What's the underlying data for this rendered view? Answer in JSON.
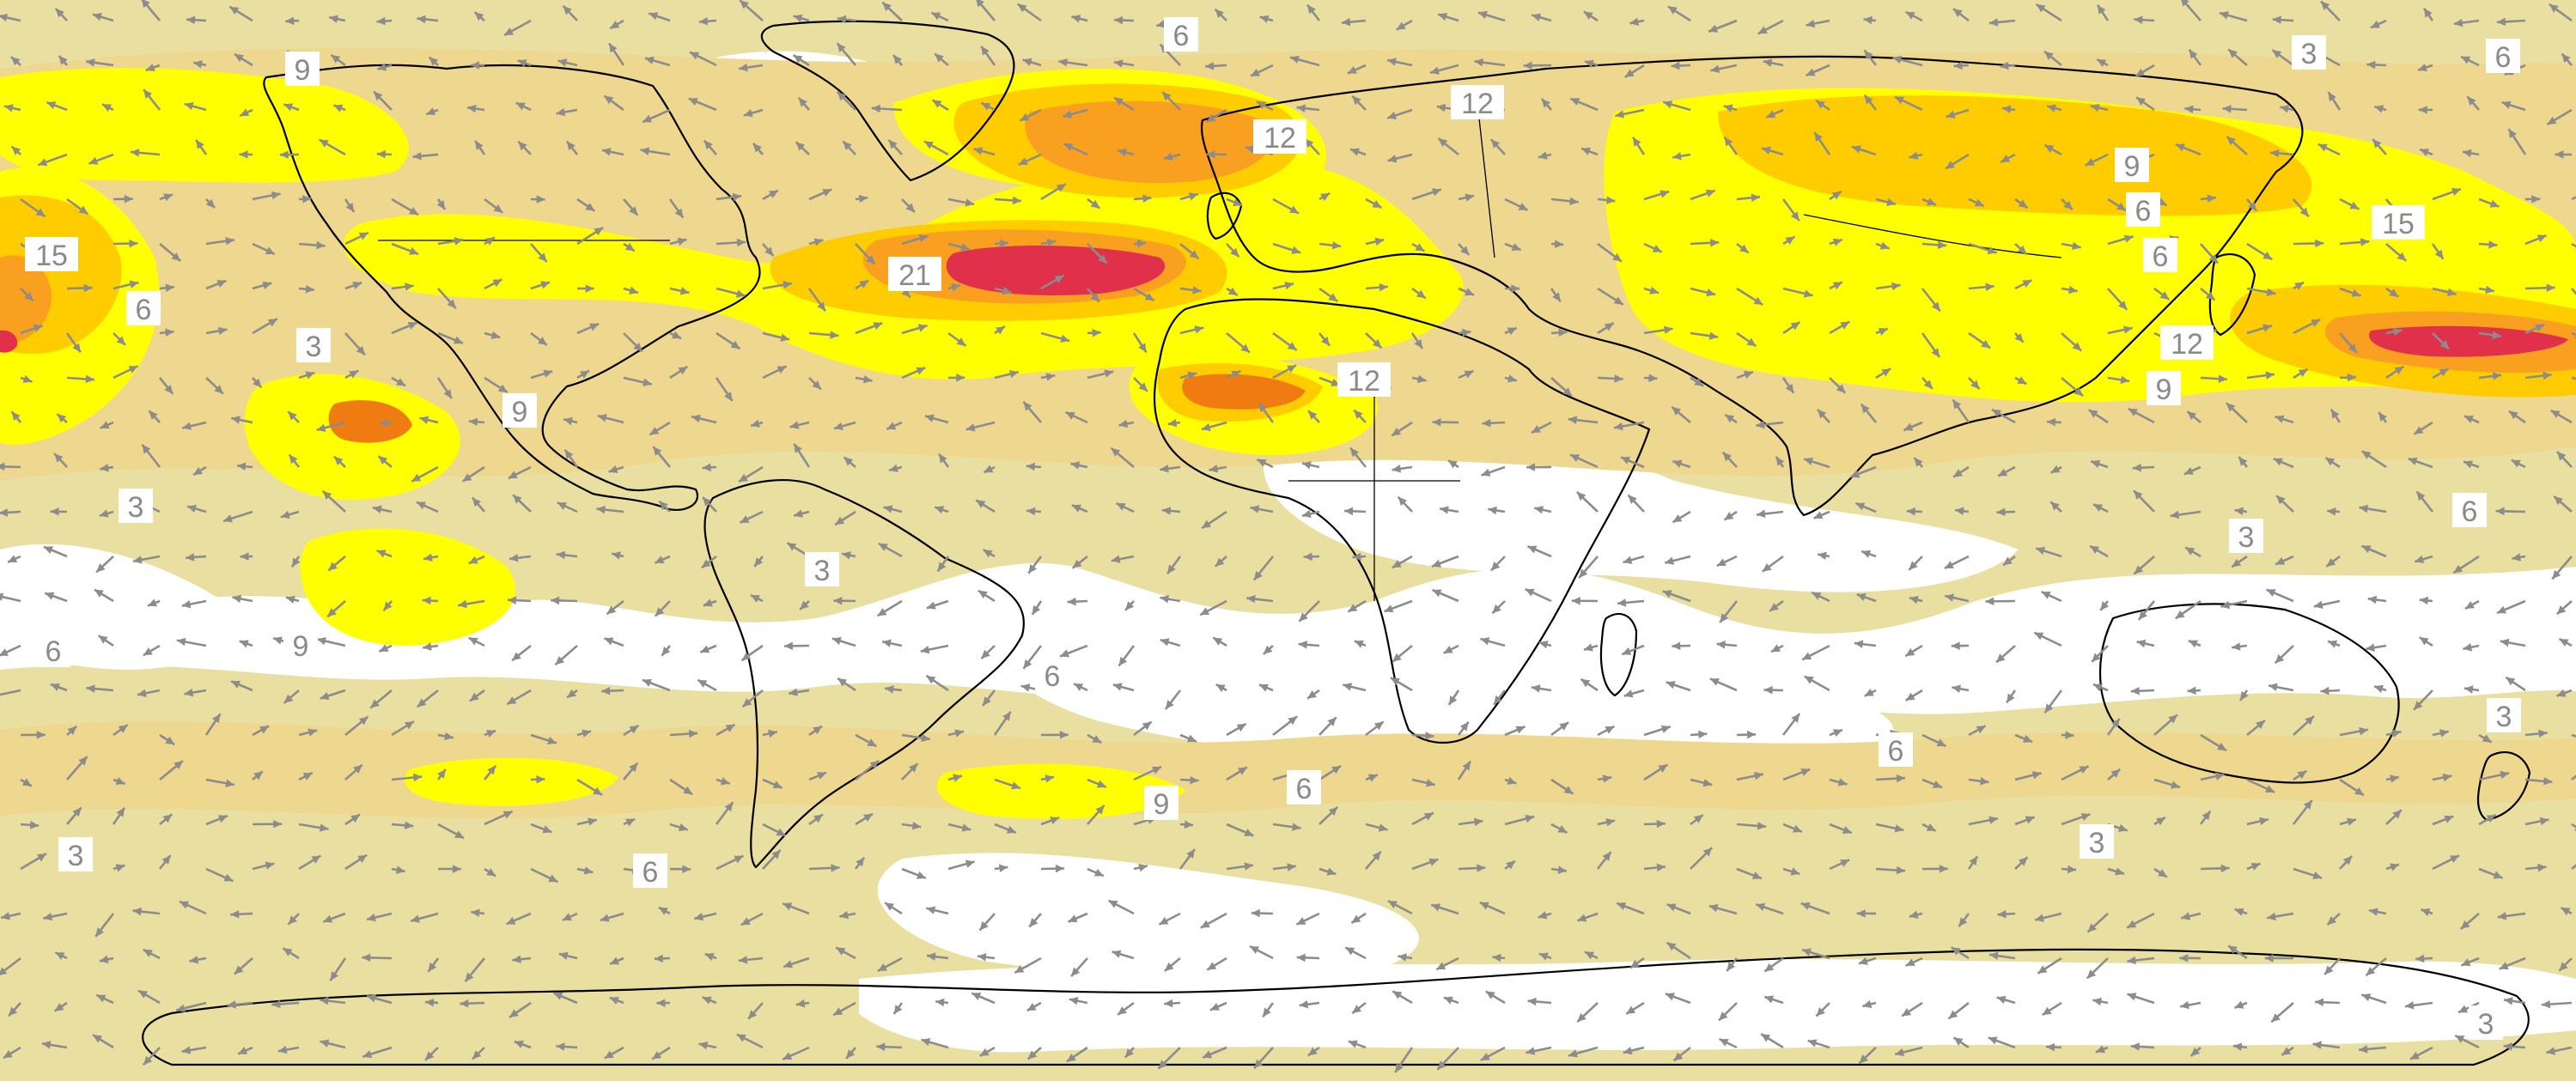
{
  "map": {
    "kind": "global wind speed contour map with wind vectors",
    "projection": "equirectangular",
    "lon_range": [
      -180,
      180
    ],
    "lat_range": [
      -90,
      90
    ],
    "legend": "none",
    "colors": {
      "background_low": "#ffffff",
      "level_3": "#e8dfa0",
      "level_6": "#eed78f",
      "level_9": "#ffff00",
      "level_12": "#ffcc00",
      "level_15": "#f9a020",
      "level_18": "#f07b10",
      "level_21": "#e0304a",
      "arrow": "#8c8c8c",
      "coastline": "#000000"
    },
    "contour_labels": [
      {
        "text": "9"
      },
      {
        "text": "6"
      },
      {
        "text": "3"
      },
      {
        "text": "6"
      },
      {
        "text": "15"
      },
      {
        "text": "12"
      },
      {
        "text": "12"
      },
      {
        "text": "9"
      },
      {
        "text": "6"
      },
      {
        "text": "6"
      },
      {
        "text": "15"
      },
      {
        "text": "6"
      },
      {
        "text": "3"
      },
      {
        "text": "21"
      },
      {
        "text": "12"
      },
      {
        "text": "12"
      },
      {
        "text": "9"
      },
      {
        "text": "9"
      },
      {
        "text": "3"
      },
      {
        "text": "6"
      },
      {
        "text": "3"
      },
      {
        "text": "3"
      },
      {
        "text": "6"
      },
      {
        "text": "9"
      },
      {
        "text": "6"
      },
      {
        "text": "6"
      },
      {
        "text": "3"
      },
      {
        "text": "9"
      },
      {
        "text": "6"
      },
      {
        "text": "3"
      },
      {
        "text": "6"
      },
      {
        "text": "3"
      },
      {
        "text": "3"
      }
    ]
  }
}
